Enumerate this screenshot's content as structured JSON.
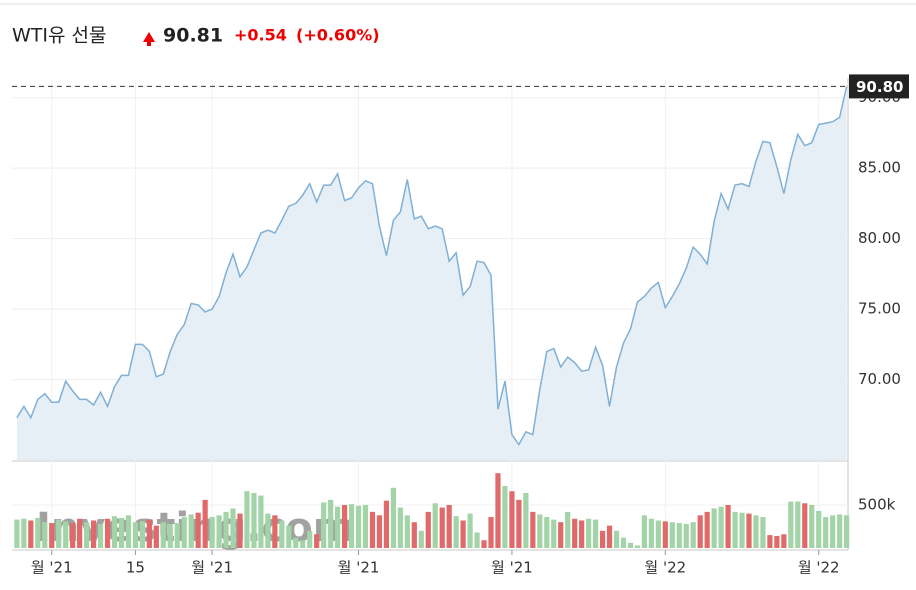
{
  "header": {
    "title": "WTI유 선물",
    "price": "90.81",
    "change": "+0.54",
    "change_pct": "(+0.60%)"
  },
  "chart_data": {
    "type": "area",
    "watermark": "Investing.com",
    "series": [
      {
        "name": "WTI",
        "color": "#7fb0d6",
        "fill": "#e6eef6",
        "values": [
          67.3,
          68.1,
          67.3,
          68.6,
          69.0,
          68.4,
          68.4,
          69.9,
          69.2,
          68.6,
          68.6,
          68.2,
          69.1,
          68.1,
          69.5,
          70.3,
          70.3,
          72.5,
          72.5,
          72.0,
          70.2,
          70.4,
          72.0,
          73.2,
          73.9,
          75.4,
          75.3,
          74.8,
          75.0,
          75.9,
          77.6,
          78.9,
          77.3,
          78.0,
          79.2,
          80.4,
          80.6,
          80.4,
          81.3,
          82.3,
          82.5,
          83.1,
          83.9,
          82.6,
          83.8,
          83.8,
          84.6,
          82.7,
          82.9,
          83.6,
          84.1,
          83.9,
          80.9,
          78.8,
          81.3,
          81.9,
          84.2,
          81.4,
          81.6,
          80.7,
          80.9,
          80.7,
          78.4,
          79.0,
          76.0,
          76.6,
          78.4,
          78.3,
          77.4,
          67.9,
          69.9,
          66.1,
          65.4,
          66.3,
          66.1,
          69.3,
          72.0,
          72.2,
          70.9,
          71.6,
          71.2,
          70.6,
          70.7,
          72.3,
          71.0,
          68.1,
          70.9,
          72.6,
          73.6,
          75.5,
          75.9,
          76.5,
          76.9,
          75.1,
          75.9,
          76.8,
          77.9,
          79.4,
          78.9,
          78.2,
          81.2,
          83.2,
          82.1,
          83.8,
          83.9,
          83.7,
          85.5,
          86.9,
          86.8,
          85.1,
          83.2,
          85.6,
          87.4,
          86.6,
          86.8,
          88.1,
          88.2,
          88.3,
          88.6,
          90.8
        ]
      }
    ],
    "last": {
      "value": 90.8,
      "label": "90.80"
    },
    "xlim": [
      -0.7,
      119.2
    ],
    "xticks": [
      {
        "value": 5,
        "label": "월 '21"
      },
      {
        "value": 17,
        "label": "15"
      },
      {
        "value": 28,
        "label": "월 '21"
      },
      {
        "value": 49,
        "label": "월 '21"
      },
      {
        "value": 71,
        "label": "월 '21"
      },
      {
        "value": 93,
        "label": "월 '22"
      },
      {
        "value": 115,
        "label": "월 '22"
      }
    ],
    "ylim": [
      64.3,
      90.9
    ],
    "yticks": [
      {
        "value": 70,
        "label": "70.00"
      },
      {
        "value": 75,
        "label": "75.00"
      },
      {
        "value": 80,
        "label": "80.00"
      },
      {
        "value": 85,
        "label": "85.00"
      },
      {
        "value": 90,
        "label": "90.00"
      }
    ],
    "grid": true,
    "volume": {
      "up_color": "#a3d4a8",
      "down_color": "#e06a6a",
      "values": [
        330000,
        340000,
        320000,
        350000,
        300000,
        290000,
        330000,
        310000,
        290000,
        340000,
        300000,
        320000,
        280000,
        340000,
        370000,
        350000,
        380000,
        300000,
        310000,
        330000,
        260000,
        300000,
        280000,
        290000,
        360000,
        390000,
        410000,
        560000,
        360000,
        380000,
        420000,
        460000,
        400000,
        660000,
        640000,
        610000,
        400000,
        380000,
        320000,
        260000,
        120000,
        90000,
        200000,
        160000,
        530000,
        560000,
        480000,
        500000,
        510000,
        490000,
        500000,
        420000,
        380000,
        550000,
        700000,
        470000,
        380000,
        300000,
        200000,
        420000,
        520000,
        470000,
        500000,
        370000,
        320000,
        400000,
        180000,
        90000,
        360000,
        870000,
        720000,
        660000,
        560000,
        640000,
        420000,
        390000,
        360000,
        330000,
        300000,
        420000,
        340000,
        320000,
        340000,
        330000,
        200000,
        260000,
        200000,
        120000,
        60000,
        30000,
        380000,
        340000,
        320000,
        310000,
        300000,
        290000,
        280000,
        300000,
        380000,
        420000,
        460000,
        480000,
        500000,
        420000,
        410000,
        400000,
        380000,
        360000,
        150000,
        140000,
        160000,
        540000,
        540000,
        520000,
        500000,
        430000,
        360000,
        380000,
        390000,
        380000
      ],
      "ylim": [
        0,
        1000000
      ],
      "yticks": [
        {
          "value": 500000,
          "label": "500k"
        }
      ]
    }
  }
}
